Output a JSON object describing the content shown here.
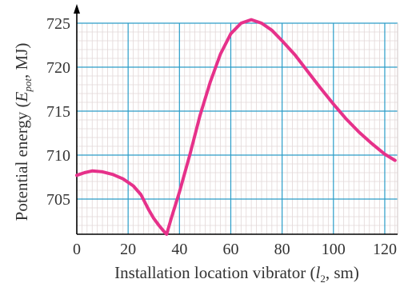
{
  "chart_data": {
    "type": "line",
    "title": "",
    "xlabel": {
      "prefix": "Installation location vibrator (",
      "var": "l",
      "sub": "2",
      "suffix": ", sm)"
    },
    "ylabel": {
      "prefix": "Potential energy (",
      "var": "E",
      "sub": "pot",
      "suffix": ", MJ)"
    },
    "xlim": [
      0,
      125
    ],
    "ylim": [
      701,
      726
    ],
    "x_ticks": [
      0,
      20,
      40,
      60,
      80,
      100,
      120
    ],
    "x_tick_labels": [
      "0",
      "20",
      "40",
      "60",
      "80",
      "100",
      "120"
    ],
    "y_ticks": [
      705,
      710,
      715,
      720,
      725
    ],
    "y_tick_labels": [
      "705",
      "710",
      "715",
      "720",
      "725"
    ],
    "grid": true,
    "colors": {
      "line": "#e6318a",
      "major_grid": "#2a9cc8",
      "minor_grid": "#e2d7d7",
      "axis": "#000000"
    },
    "series": [
      {
        "name": "",
        "x": [
          0,
          3,
          6,
          10,
          14,
          18,
          22,
          25,
          28,
          30,
          32,
          34,
          35,
          37,
          40,
          44,
          48,
          52,
          56,
          60,
          64,
          68,
          72,
          76,
          80,
          85,
          90,
          95,
          100,
          105,
          110,
          115,
          120,
          124
        ],
        "y": [
          707.7,
          708.0,
          708.2,
          708.1,
          707.8,
          707.3,
          706.5,
          705.5,
          703.8,
          702.8,
          702.0,
          701.3,
          701.0,
          703.0,
          705.8,
          710.0,
          714.5,
          718.3,
          721.5,
          723.8,
          725.0,
          725.4,
          725.0,
          724.2,
          723.0,
          721.4,
          719.5,
          717.6,
          715.8,
          714.1,
          712.6,
          711.3,
          710.1,
          709.4
        ]
      }
    ]
  }
}
